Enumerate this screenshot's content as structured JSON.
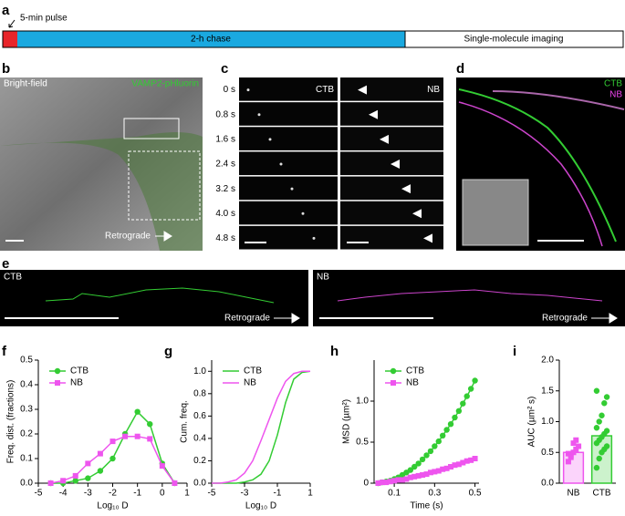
{
  "figure": {
    "panel_labels": [
      "a",
      "b",
      "c",
      "d",
      "e",
      "f",
      "g",
      "h",
      "i"
    ],
    "a": {
      "pulse": "5-min pulse",
      "chase": "2-h chase",
      "imaging": "Single-molecule imaging"
    },
    "b": {
      "brightfield": "Bright-field",
      "reporter": "VAMP2-pHluorin",
      "direction": "Retrograde"
    },
    "c": {
      "times": [
        "0 s",
        "0.8 s",
        "1.6 s",
        "2.4 s",
        "3.2 s",
        "4.0 s",
        "4.8 s"
      ],
      "left": "CTB",
      "right": "NB"
    },
    "d": {
      "ctb": "CTB",
      "nb": "NB"
    },
    "e": {
      "left": "CTB",
      "right": "NB",
      "direction_left": "Retrograde",
      "direction_right": "Retrograde"
    }
  },
  "chart_data": [
    {
      "type": "line",
      "x_label": "Log₁₀ D",
      "y_label": "Freq. dist. (fractions)",
      "xlim": [
        -5,
        1
      ],
      "xticks": [
        -5,
        -4,
        -3,
        -2,
        -1,
        0,
        1
      ],
      "ylim": [
        0,
        0.5
      ],
      "yticks": [
        {
          "value": 0,
          "label": "0.0"
        },
        0.1,
        0.2,
        0.3,
        0.4,
        0.5
      ],
      "legend": "upper left",
      "x": [
        -4.5,
        -4,
        -3.5,
        -3,
        -2.5,
        -2,
        -1.5,
        -1,
        -0.5,
        0,
        0.5
      ],
      "series": [
        {
          "name": "CTB",
          "color": "#33cc33",
          "marker": "circle",
          "values": [
            0,
            0,
            0.01,
            0.02,
            0.05,
            0.1,
            0.2,
            0.29,
            0.24,
            0.08,
            0
          ]
        },
        {
          "name": "NB",
          "color": "#ee55ee",
          "marker": "square",
          "values": [
            0,
            0.01,
            0.03,
            0.08,
            0.12,
            0.17,
            0.19,
            0.19,
            0.18,
            0.07,
            0
          ]
        }
      ]
    },
    {
      "type": "line",
      "x_label": "Log₁₀ D",
      "y_label": "Cum. freq.",
      "xlim": [
        -5,
        1
      ],
      "xticks": [
        -5,
        -3,
        -1,
        1
      ],
      "ylim": [
        0,
        1.1
      ],
      "yticks": [
        {
          "value": 0,
          "label": "0.0"
        },
        0.2,
        0.4,
        0.6,
        0.8,
        {
          "value": 1,
          "label": "1.0"
        }
      ],
      "legend": "upper left",
      "x": [
        -5,
        -4.5,
        -4,
        -3.5,
        -3,
        -2.5,
        -2,
        -1.5,
        -1,
        -0.5,
        0,
        0.5,
        1
      ],
      "series": [
        {
          "name": "CTB",
          "color": "#33cc33",
          "marker": "none",
          "values": [
            0,
            0,
            0,
            0,
            0.01,
            0.03,
            0.08,
            0.2,
            0.43,
            0.72,
            0.93,
            0.99,
            1
          ]
        },
        {
          "name": "NB",
          "color": "#ee55ee",
          "marker": "none",
          "values": [
            0,
            0,
            0.01,
            0.03,
            0.09,
            0.2,
            0.38,
            0.57,
            0.76,
            0.91,
            0.98,
            1,
            1
          ]
        }
      ]
    },
    {
      "type": "line",
      "x_label": "Time (s)",
      "y_label": "MSD (µm²)",
      "xlim": [
        0,
        0.52
      ],
      "xticks": [
        0.1,
        0.3,
        0.5
      ],
      "ylim": [
        0,
        1.5
      ],
      "yticks": [
        0,
        0.5,
        {
          "value": 1,
          "label": "1.0"
        }
      ],
      "legend": "upper left",
      "x": [
        0.02,
        0.04,
        0.06,
        0.08,
        0.1,
        0.12,
        0.14,
        0.16,
        0.18,
        0.2,
        0.22,
        0.24,
        0.26,
        0.28,
        0.3,
        0.32,
        0.34,
        0.36,
        0.38,
        0.4,
        0.42,
        0.44,
        0.46,
        0.48,
        0.5
      ],
      "series": [
        {
          "name": "CTB",
          "color": "#33cc33",
          "marker": "circle",
          "values": [
            0,
            0.01,
            0.02,
            0.03,
            0.05,
            0.07,
            0.1,
            0.13,
            0.16,
            0.2,
            0.24,
            0.29,
            0.34,
            0.39,
            0.45,
            0.51,
            0.58,
            0.65,
            0.72,
            0.8,
            0.88,
            0.97,
            1.06,
            1.15,
            1.25
          ]
        },
        {
          "name": "NB",
          "color": "#ee55ee",
          "marker": "square",
          "values": [
            0,
            0.01,
            0.01,
            0.02,
            0.03,
            0.04,
            0.04,
            0.05,
            0.07,
            0.08,
            0.09,
            0.1,
            0.11,
            0.13,
            0.14,
            0.15,
            0.17,
            0.18,
            0.2,
            0.22,
            0.23,
            0.25,
            0.27,
            0.28,
            0.3
          ]
        }
      ]
    },
    {
      "type": "bar",
      "y_label": "AUC (µm² s)",
      "ylim": [
        0,
        2
      ],
      "yticks": [
        {
          "value": 0,
          "label": "0.0"
        },
        0.5,
        {
          "value": 1,
          "label": "1.0"
        },
        1.5,
        {
          "value": 2,
          "label": "2.0"
        }
      ],
      "categories": [
        "NB",
        "CTB"
      ],
      "colors": [
        "#ee55ee",
        "#33cc33"
      ],
      "markers": [
        "square",
        "circle"
      ],
      "values": [
        0.5,
        0.77
      ],
      "points": [
        [
          0.35,
          0.45,
          0.5,
          0.55,
          0.6,
          0.48,
          0.42,
          0.65,
          0.7
        ],
        [
          0.25,
          0.4,
          0.5,
          0.55,
          0.6,
          0.65,
          0.7,
          0.75,
          0.8,
          0.85,
          0.9,
          1,
          1.1,
          1.3,
          1.4,
          1.5
        ]
      ]
    }
  ]
}
